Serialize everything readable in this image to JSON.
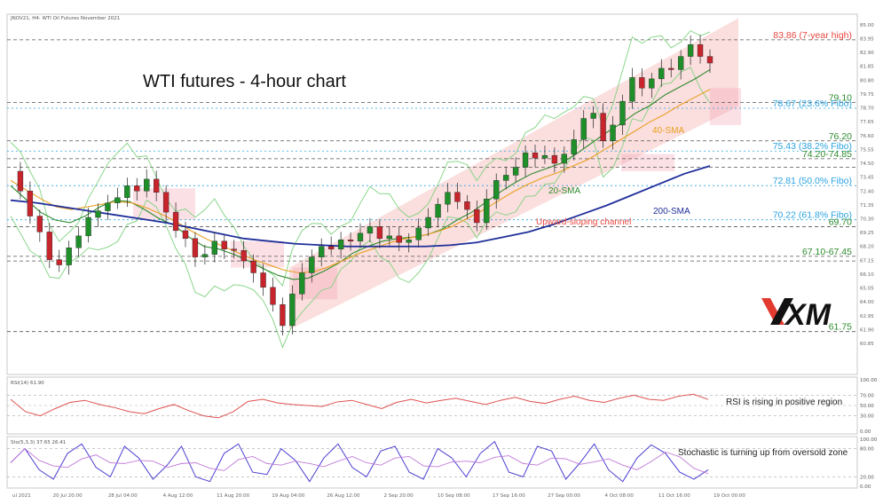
{
  "header": {
    "instrument": "JNOV21, H4:  WTI Oil Futures November 2021"
  },
  "chart_data": {
    "type": "candlestick",
    "title": "WTI futures - 4-hour chart",
    "price_range": [
      58.5,
      85.8
    ],
    "x_ticks": [
      "ul 2021",
      "20 Jul 20:00",
      "28 Jul 04:00",
      "4 Aug 12:00",
      "11 Aug 20:00",
      "19 Aug 04:00",
      "26 Aug 12:00",
      "2 Sep 20:00",
      "10 Sep 08:00",
      "17 Sep 16:00",
      "27 Sep 00:00",
      "4 Oct 08:00",
      "11 Oct 16:00",
      "19 Oct 00:00"
    ],
    "y_ticks": [
      "85.00",
      "83.95",
      "82.90",
      "81.85",
      "80.80",
      "79.75",
      "78.70",
      "77.65",
      "76.60",
      "75.55",
      "74.50",
      "73.45",
      "72.40",
      "71.35",
      "70.30",
      "69.25",
      "68.20",
      "67.15",
      "66.10",
      "65.05",
      "64.00",
      "62.95",
      "61.90",
      "60.85"
    ],
    "levels": [
      {
        "label": "83.86 (7-year high)",
        "price": 83.86,
        "color": "#e8473f",
        "style": "dashed"
      },
      {
        "label": "79.10",
        "price": 79.1,
        "color": "#2e8b2e",
        "style": "dashed"
      },
      {
        "label": "78.67 (23.6% Fibo)",
        "price": 78.67,
        "color": "#2aa3e0",
        "style": "dotted"
      },
      {
        "label": "76.20",
        "price": 76.2,
        "color": "#2e8b2e",
        "style": "dashed"
      },
      {
        "label": "75.43 (38.2% Fibo)",
        "price": 75.43,
        "color": "#2aa3e0",
        "style": "dotted"
      },
      {
        "label": "74.20-74.85",
        "price": 74.85,
        "price2": 74.2,
        "color": "#2e8b2e",
        "style": "dashed"
      },
      {
        "label": "72.81 (50.0% Fibo)",
        "price": 72.81,
        "color": "#2aa3e0",
        "style": "dotted"
      },
      {
        "label": "70.22 (61.8% Fibo)",
        "price": 70.22,
        "color": "#2aa3e0",
        "style": "dotted"
      },
      {
        "label": "69.70",
        "price": 69.7,
        "color": "#2e8b2e",
        "style": "dashed"
      },
      {
        "label": "67.10-67.45",
        "price": 67.45,
        "price2": 67.1,
        "color": "#2e8b2e",
        "style": "dashed"
      },
      {
        "label": "61.75",
        "price": 61.75,
        "color": "#2e8b2e",
        "style": "dashed"
      }
    ],
    "annotations": {
      "sma20": "20-SMA",
      "sma40": "40-SMA",
      "sma200": "200-SMA",
      "channel": "Upward-sloping channel"
    },
    "series": [
      {
        "name": "Price",
        "values": [
          73.9,
          72.4,
          70.5,
          69.3,
          67.2,
          66.8,
          68.1,
          69.0,
          70.4,
          70.9,
          71.5,
          71.9,
          72.8,
          72.4,
          73.3,
          72.3,
          70.8,
          69.4,
          68.8,
          67.4,
          67.6,
          68.6,
          68.0,
          67.9,
          67.1,
          66.2,
          65.1,
          63.8,
          62.2,
          64.6,
          66.2,
          67.4,
          68.2,
          68.0,
          68.7,
          68.6,
          69.2,
          69.7,
          68.8,
          69.0,
          68.5,
          68.7,
          69.6,
          70.4,
          71.4,
          72.3,
          71.6,
          71.0,
          70.0,
          71.8,
          73.2,
          73.6,
          74.2,
          75.3,
          74.9,
          75.1,
          74.5,
          75.2,
          76.3,
          77.9,
          78.3,
          76.2,
          77.4,
          79.2,
          81.0,
          80.2,
          80.9,
          81.7,
          81.6,
          82.6,
          83.5,
          82.6,
          82.1
        ]
      },
      {
        "name": "20-SMA",
        "values": [
          72.8,
          71.8,
          70.8,
          70.2,
          70.0,
          70.5,
          71.2,
          71.7,
          71.6,
          71.0,
          70.3,
          69.8,
          68.9,
          68.2,
          68.0,
          67.6,
          67.1,
          66.5,
          66.0,
          65.7,
          65.8,
          66.3,
          66.9,
          67.7,
          68.2,
          68.6,
          68.8,
          68.9,
          69.1,
          69.5,
          70.2,
          70.8,
          71.6,
          72.4,
          73.1,
          73.7,
          74.1,
          74.5,
          75.2,
          76.0,
          76.8,
          77.5,
          78.3,
          78.9,
          79.7,
          80.3,
          80.9,
          81.6
        ]
      },
      {
        "name": "40-SMA",
        "values": [
          73.2,
          72.5,
          71.8,
          71.2,
          71.0,
          71.2,
          71.4,
          71.6,
          71.5,
          71.1,
          70.6,
          70.0,
          69.3,
          68.7,
          68.2,
          67.7,
          67.2,
          66.8,
          66.4,
          66.2,
          66.3,
          66.7,
          67.2,
          67.7,
          68.1,
          68.5,
          68.8,
          69.0,
          69.3,
          69.7,
          70.3,
          70.9,
          71.6,
          72.3,
          72.9,
          73.4,
          73.8,
          74.3,
          74.8,
          75.5,
          76.2,
          76.9,
          77.6,
          78.2,
          78.9,
          79.5,
          80.1
        ]
      },
      {
        "name": "200-SMA",
        "values": [
          71.7,
          71.5,
          71.2,
          70.9,
          70.6,
          70.3,
          70.0,
          69.6,
          69.2,
          68.8,
          68.6,
          68.4,
          68.3,
          68.2,
          68.2,
          68.2,
          68.2,
          68.3,
          68.5,
          68.9,
          69.3,
          69.9,
          70.6,
          71.3,
          72.1,
          72.9,
          73.7,
          74.3
        ]
      }
    ],
    "rsi": {
      "header": "RSI(14) 61.90",
      "values": [
        62,
        38,
        30,
        44,
        56,
        60,
        52,
        46,
        38,
        34,
        44,
        52,
        40,
        30,
        26,
        38,
        58,
        62,
        55,
        52,
        50,
        48,
        57,
        60,
        52,
        44,
        56,
        62,
        55,
        60,
        64,
        58,
        52,
        60,
        66,
        58,
        54,
        62,
        68,
        60,
        56,
        64,
        70,
        62,
        60,
        68,
        72,
        62
      ],
      "y_ticks": [
        "100.00",
        "70.00",
        "50.00",
        "30.00",
        "0.00"
      ],
      "note": "RSI is rising in positive region"
    },
    "stochastic": {
      "header": "Sto(5,3,3) 37.65 26.41",
      "values": [
        50,
        80,
        35,
        15,
        70,
        90,
        40,
        20,
        85,
        60,
        15,
        45,
        85,
        20,
        10,
        70,
        90,
        30,
        25,
        80,
        55,
        10,
        60,
        90,
        40,
        20,
        75,
        85,
        30,
        15,
        80,
        60,
        20,
        70,
        95,
        30,
        20,
        85,
        75,
        15,
        50,
        90,
        35,
        10,
        60,
        88,
        70,
        30,
        15,
        35
      ],
      "y_ticks": [
        "100.00",
        "80.00",
        "20.00",
        "0.00"
      ],
      "note": "Stochastic is turning up from oversold zone"
    }
  },
  "brand": {
    "logo": "XM"
  }
}
